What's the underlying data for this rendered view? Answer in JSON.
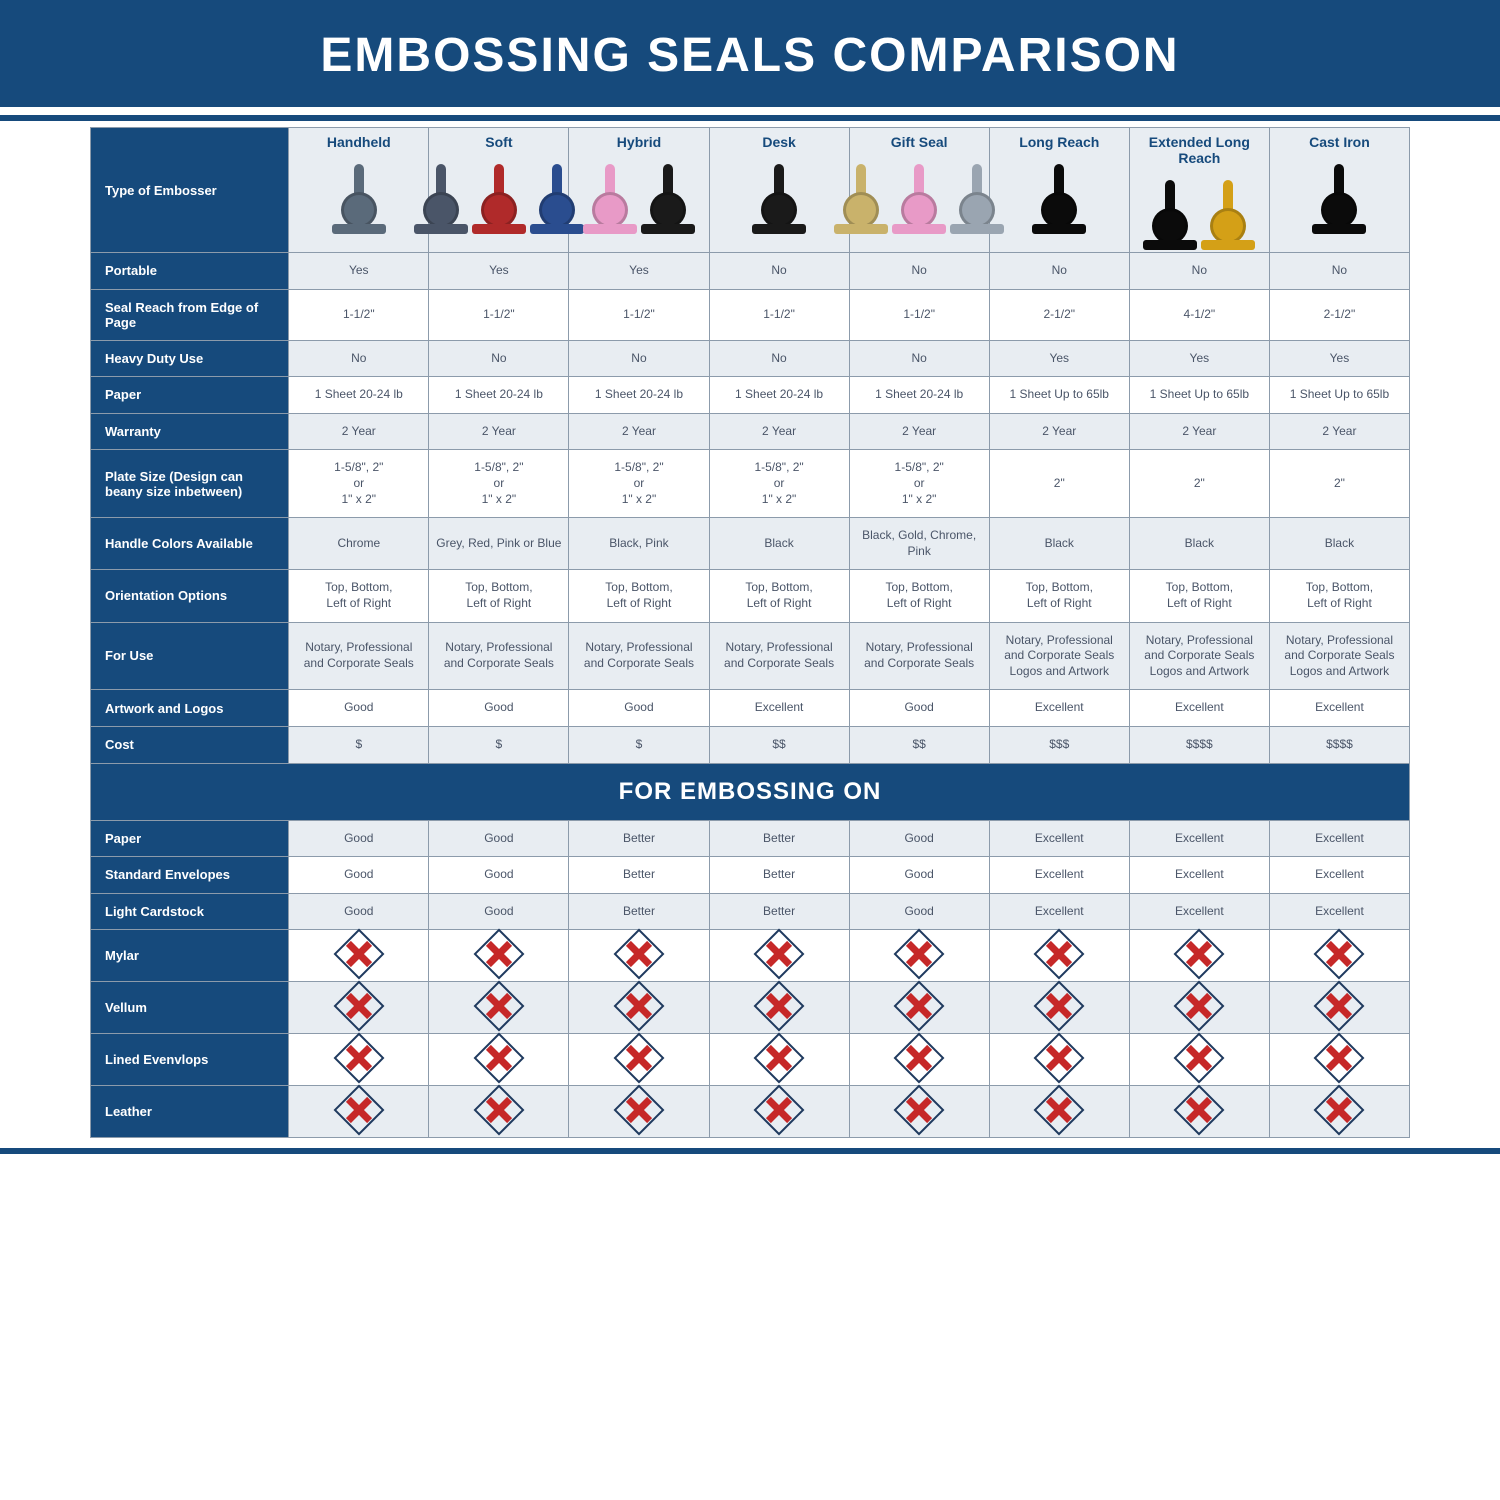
{
  "title": "EMBOSSING SEALS COMPARISON",
  "colors": {
    "band_bg": "#164a7c",
    "band_fg": "#ffffff",
    "rowhead_bg": "#164a7c",
    "rowhead_fg": "#ffffff",
    "colhead_bg": "#e8edf2",
    "colhead_fg": "#164a7c",
    "alt_row_bg": "#e8edf2",
    "cell_fg": "#4a5568",
    "grid": "#8c9bab",
    "cross_fg": "#c62828",
    "cross_border": "#1f3a5f"
  },
  "font_sizes_pt": {
    "title": 36,
    "colhead": 14,
    "rowhead": 13,
    "cell": 12,
    "section": 18
  },
  "columns": [
    {
      "label": "Handheld",
      "icon_variants": [
        {
          "c": "#5a6a7a"
        }
      ]
    },
    {
      "label": "Soft",
      "icon_variants": [
        {
          "c": "#4a5568"
        },
        {
          "c": "#b02a2a"
        },
        {
          "c": "#2a4d8f"
        }
      ]
    },
    {
      "label": "Hybrid",
      "icon_variants": [
        {
          "c": "#e89ac7"
        },
        {
          "c": "#1a1a1a"
        }
      ]
    },
    {
      "label": "Desk",
      "icon_variants": [
        {
          "c": "#1a1a1a"
        }
      ]
    },
    {
      "label": "Gift Seal",
      "icon_variants": [
        {
          "c": "#c9b26b"
        },
        {
          "c": "#e89ac7"
        },
        {
          "c": "#9aa5b1"
        }
      ]
    },
    {
      "label": "Long Reach",
      "icon_variants": [
        {
          "c": "#0b0b0b"
        }
      ]
    },
    {
      "label": "Extended Long Reach",
      "icon_variants": [
        {
          "c": "#0b0b0b"
        },
        {
          "c": "#d4a017"
        }
      ]
    },
    {
      "label": "Cast Iron",
      "icon_variants": [
        {
          "c": "#0b0b0b"
        }
      ]
    }
  ],
  "row_labels": {
    "r0": "Type of Embosser",
    "r1": "Portable",
    "r2": "Seal Reach from Edge of Page",
    "r3": "Heavy Duty Use",
    "r4": "Paper",
    "r5": "Warranty",
    "r6": "Plate Size (Design can beany size inbetween)",
    "r7": "Handle Colors Available",
    "r8": "Orientation Options",
    "r9": "For Use",
    "r10": "Artwork and Logos",
    "r11": "Cost"
  },
  "section_label": "FOR EMBOSSING ON",
  "row_labels2": {
    "s1": "Paper",
    "s2": "Standard Envelopes",
    "s3": "Light Cardstock",
    "s4": "Mylar",
    "s5": "Vellum",
    "s6": "Lined Evenvlops",
    "s7": "Leather"
  },
  "rows": {
    "r1": [
      "Yes",
      "Yes",
      "Yes",
      "No",
      "No",
      "No",
      "No",
      "No"
    ],
    "r2": [
      "1-1/2\"",
      "1-1/2\"",
      "1-1/2\"",
      "1-1/2\"",
      "1-1/2\"",
      "2-1/2\"",
      "4-1/2\"",
      "2-1/2\""
    ],
    "r3": [
      "No",
      "No",
      "No",
      "No",
      "No",
      "Yes",
      "Yes",
      "Yes"
    ],
    "r4": [
      "1 Sheet 20-24 lb",
      "1 Sheet 20-24 lb",
      "1 Sheet 20-24 lb",
      "1 Sheet 20-24 lb",
      "1 Sheet 20-24 lb",
      "1 Sheet Up to 65lb",
      "1 Sheet Up to 65lb",
      "1 Sheet Up to 65lb"
    ],
    "r5": [
      "2 Year",
      "2 Year",
      "2 Year",
      "2 Year",
      "2 Year",
      "2 Year",
      "2 Year",
      "2 Year"
    ],
    "r6": [
      "1-5/8\", 2\"\nor\n1\" x 2\"",
      "1-5/8\", 2\"\nor\n1\" x 2\"",
      "1-5/8\", 2\"\nor\n1\" x 2\"",
      "1-5/8\", 2\"\nor\n1\" x 2\"",
      "1-5/8\", 2\"\nor\n1\" x 2\"",
      "2\"",
      "2\"",
      "2\""
    ],
    "r7": [
      "Chrome",
      "Grey, Red, Pink or Blue",
      "Black, Pink",
      "Black",
      "Black, Gold, Chrome, Pink",
      "Black",
      "Black",
      "Black"
    ],
    "r8": [
      "Top, Bottom,\nLeft of Right",
      "Top, Bottom,\nLeft of Right",
      "Top, Bottom,\nLeft of Right",
      "Top, Bottom,\nLeft of Right",
      "Top, Bottom,\nLeft of Right",
      "Top, Bottom,\nLeft of Right",
      "Top, Bottom,\nLeft of Right",
      "Top, Bottom,\nLeft of Right"
    ],
    "r9": [
      "Notary, Professional\nand Corporate Seals",
      "Notary, Professional\nand Corporate Seals",
      "Notary, Professional\nand Corporate Seals",
      "Notary, Professional\nand Corporate Seals",
      "Notary, Professional\nand Corporate Seals",
      "Notary, Professional\nand Corporate Seals\nLogos and Artwork",
      "Notary, Professional\nand Corporate Seals\nLogos and Artwork",
      "Notary, Professional\nand Corporate Seals\nLogos and Artwork"
    ],
    "r10": [
      "Good",
      "Good",
      "Good",
      "Excellent",
      "Good",
      "Excellent",
      "Excellent",
      "Excellent"
    ],
    "r11": [
      "$",
      "$",
      "$",
      "$$",
      "$$",
      "$$$",
      "$$$$",
      "$$$$"
    ]
  },
  "rows2": {
    "s1": [
      "Good",
      "Good",
      "Better",
      "Better",
      "Good",
      "Excellent",
      "Excellent",
      "Excellent"
    ],
    "s2": [
      "Good",
      "Good",
      "Better",
      "Better",
      "Good",
      "Excellent",
      "Excellent",
      "Excellent"
    ],
    "s3": [
      "Good",
      "Good",
      "Better",
      "Better",
      "Good",
      "Excellent",
      "Excellent",
      "Excellent"
    ],
    "s4": [
      "X",
      "X",
      "X",
      "X",
      "X",
      "X",
      "X",
      "X"
    ],
    "s5": [
      "X",
      "X",
      "X",
      "X",
      "X",
      "X",
      "X",
      "X"
    ],
    "s6": [
      "X",
      "X",
      "X",
      "X",
      "X",
      "X",
      "X",
      "X"
    ],
    "s7": [
      "X",
      "X",
      "X",
      "X",
      "X",
      "X",
      "X",
      "X"
    ]
  }
}
